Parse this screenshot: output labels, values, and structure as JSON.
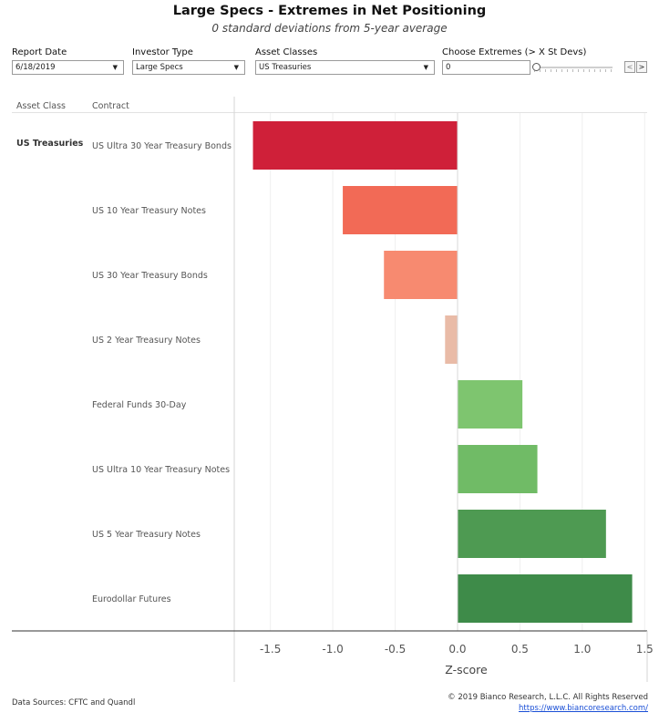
{
  "header": {
    "title": "Large Specs - Extremes in Net Positioning",
    "subtitle": "0 standard deviations from 5-year average"
  },
  "filters": {
    "report_date": {
      "label": "Report Date",
      "value": "6/18/2019"
    },
    "investor_type": {
      "label": "Investor Type",
      "value": "Large Specs"
    },
    "asset_classes": {
      "label": "Asset Classes",
      "value": "US Treasuries"
    },
    "extremes": {
      "label": "Choose Extremes (> X St Devs)",
      "value": "0"
    }
  },
  "nav": {
    "prev": "<",
    "next": ">"
  },
  "table": {
    "col_asset_class": "Asset Class",
    "col_contract": "Contract",
    "asset_class": "US Treasuries"
  },
  "colors": {
    "most_negative": "#cf2039",
    "negative": "#f26a56",
    "mild_negative": "#f78a70",
    "near_zero_negative": "#e9bba7",
    "mild_positive": "#7ec56f",
    "positive": "#70bb66",
    "strong_positive": "#4e9a52",
    "most_positive": "#3e8b49"
  },
  "chart_data": {
    "type": "bar",
    "orientation": "horizontal",
    "categories": [
      "US Ultra 30 Year Treasury Bonds",
      "US 10 Year Treasury Notes",
      "US 30 Year Treasury Bonds",
      "US 2 Year Treasury Notes",
      "Federal Funds 30-Day",
      "US Ultra 10 Year Treasury Notes",
      "US 5 Year Treasury Notes",
      "Eurodollar Futures"
    ],
    "values": [
      -1.64,
      -0.92,
      -0.59,
      -0.1,
      0.52,
      0.64,
      1.19,
      1.4
    ],
    "bar_colors": [
      "#cf2039",
      "#f26a56",
      "#f78a70",
      "#e9bba7",
      "#7ec56f",
      "#70bb66",
      "#4e9a52",
      "#3e8b49"
    ],
    "xlabel": "Z-score",
    "xlim": [
      -1.79,
      1.52
    ],
    "xticks": [
      -1.5,
      -1.0,
      -0.5,
      0.0,
      0.5,
      1.0,
      1.5
    ],
    "xtick_labels": [
      "-1.5",
      "-1.0",
      "-0.5",
      "0.0",
      "0.5",
      "1.0",
      "1.5"
    ],
    "grid": true
  },
  "footer": {
    "sources": "Data Sources: CFTC and Quandl",
    "copyright": "© 2019 Bianco Research, L.L.C. All Rights Reserved",
    "link": "https://www.biancoresearch.com/"
  }
}
